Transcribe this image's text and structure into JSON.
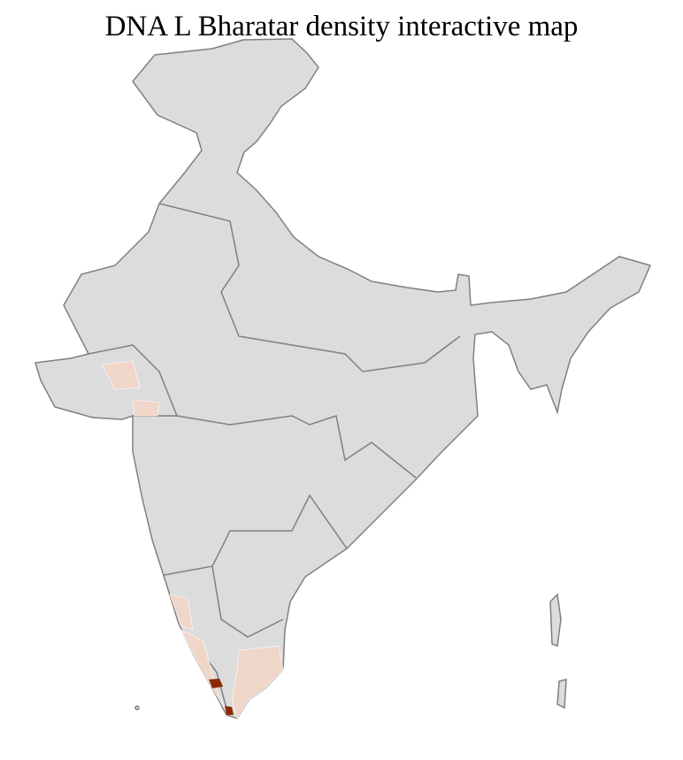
{
  "title": "DNA L Bharatar density interactive map",
  "colors": {
    "land": "#dcdcdc",
    "state_border": "#808080",
    "district_border": "#ffffff",
    "low_density": "#f0d6c8",
    "high_density": "#8b2a00",
    "background": "#ffffff"
  },
  "highlighted_regions": [
    {
      "area": "Gujarat",
      "level": "low"
    },
    {
      "area": "Karnataka coast",
      "level": "low"
    },
    {
      "area": "Kerala",
      "level": "low"
    },
    {
      "area": "Tamil Nadu",
      "level": "low"
    },
    {
      "area": "Central Kerala",
      "level": "high"
    },
    {
      "area": "Southern tip",
      "level": "high"
    }
  ]
}
